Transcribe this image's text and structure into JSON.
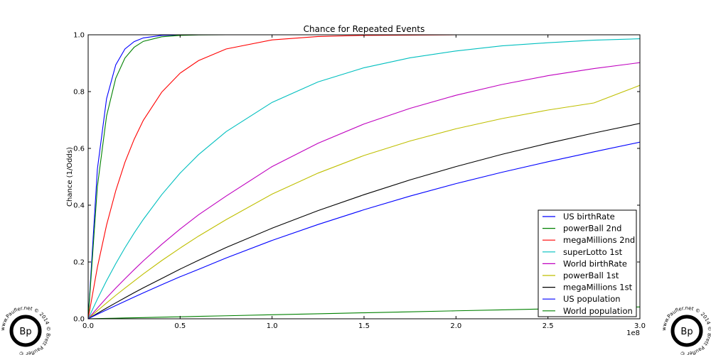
{
  "chart_data": {
    "type": "line",
    "title": "Chance for Repeated Events",
    "xlabel": "",
    "ylabel": "Chance (1/Odds)",
    "x_offset_label": "1e8",
    "xlim": [
      0,
      300000000
    ],
    "ylim": [
      0,
      1.0
    ],
    "x_ticks": [
      0,
      50000000,
      100000000,
      150000000,
      200000000,
      250000000,
      300000000
    ],
    "x_tick_labels": [
      "0.0",
      "0.5",
      "1.0",
      "1.5",
      "2.0",
      "2.5",
      "3.0"
    ],
    "y_ticks": [
      0,
      0.2,
      0.4,
      0.6,
      0.8,
      1.0
    ],
    "y_tick_labels": [
      "0.0",
      "0.2",
      "0.4",
      "0.6",
      "0.8",
      "1.0"
    ],
    "grid": false,
    "legend_position": "bottom-right",
    "x": [
      0,
      5000000,
      10000000,
      15000000,
      20000000,
      25000000,
      30000000,
      40000000,
      50000000,
      60000000,
      75000000,
      100000000,
      125000000,
      150000000,
      175000000,
      200000000,
      225000000,
      250000000,
      275000000,
      300000000
    ],
    "series": [
      {
        "name": "US birthRate",
        "color": "#0000ff",
        "values": [
          0,
          0.526,
          0.775,
          0.894,
          0.95,
          0.976,
          0.989,
          0.998,
          0.9995,
          1.0,
          1.0,
          1.0,
          1.0,
          1.0,
          1.0,
          1.0,
          1.0,
          1.0,
          1.0,
          1.0
        ]
      },
      {
        "name": "powerBall 2nd",
        "color": "#008000",
        "values": [
          0,
          0.465,
          0.714,
          0.847,
          0.918,
          0.956,
          0.977,
          0.993,
          0.998,
          0.9994,
          1.0,
          1.0,
          1.0,
          1.0,
          1.0,
          1.0,
          1.0,
          1.0,
          1.0,
          1.0
        ]
      },
      {
        "name": "megaMillions 2nd",
        "color": "#ff0000",
        "values": [
          0,
          0.181,
          0.33,
          0.451,
          0.551,
          0.632,
          0.699,
          0.798,
          0.865,
          0.909,
          0.95,
          0.982,
          0.994,
          0.998,
          0.999,
          1.0,
          1.0,
          1.0,
          1.0,
          1.0
        ]
      },
      {
        "name": "superLotto 1st",
        "color": "#00bfbf",
        "values": [
          0,
          0.069,
          0.134,
          0.194,
          0.25,
          0.302,
          0.35,
          0.437,
          0.513,
          0.578,
          0.659,
          0.762,
          0.834,
          0.884,
          0.919,
          0.943,
          0.961,
          0.972,
          0.981,
          0.986
        ]
      },
      {
        "name": "World birthRate",
        "color": "#bf00bf",
        "values": [
          0,
          0.0376,
          0.0737,
          0.108,
          0.141,
          0.173,
          0.204,
          0.262,
          0.316,
          0.366,
          0.432,
          0.536,
          0.618,
          0.686,
          0.741,
          0.787,
          0.825,
          0.856,
          0.881,
          0.902
        ]
      },
      {
        "name": "powerBall 1st",
        "color": "#bfbf00",
        "values": [
          0,
          0.0283,
          0.0558,
          0.0825,
          0.108,
          0.133,
          0.158,
          0.205,
          0.249,
          0.291,
          0.349,
          0.439,
          0.513,
          0.575,
          0.626,
          0.669,
          0.705,
          0.735,
          0.76,
          0.822
        ]
      },
      {
        "name": "megaMillions 1st",
        "color": "#000000",
        "values": [
          0,
          0.0191,
          0.0378,
          0.0561,
          0.0741,
          0.0918,
          0.109,
          0.142,
          0.175,
          0.206,
          0.251,
          0.319,
          0.381,
          0.437,
          0.489,
          0.536,
          0.579,
          0.618,
          0.654,
          0.688
        ]
      },
      {
        "name": "US population",
        "color": "#0000ff",
        "values": [
          0,
          0.0158,
          0.0313,
          0.0466,
          0.0617,
          0.0765,
          0.0911,
          0.12,
          0.148,
          0.174,
          0.214,
          0.276,
          0.332,
          0.384,
          0.432,
          0.476,
          0.516,
          0.553,
          0.588,
          0.622
        ]
      },
      {
        "name": "World population",
        "color": "#008000",
        "values": [
          0,
          0.0007,
          0.0014,
          0.0021,
          0.0029,
          0.0036,
          0.0043,
          0.0057,
          0.0071,
          0.0085,
          0.0106,
          0.0142,
          0.0177,
          0.0212,
          0.0246,
          0.0281,
          0.0315,
          0.0349,
          0.0383,
          0.0417
        ]
      }
    ]
  },
  "logos": [
    {
      "mark": "Bp",
      "ring_text": "www.Paufler.net © 2014 © Brett Paufler ©"
    },
    {
      "mark": "Bp",
      "ring_text": "www.Paufler.net © 2014 © Brett Paufler ©"
    }
  ]
}
